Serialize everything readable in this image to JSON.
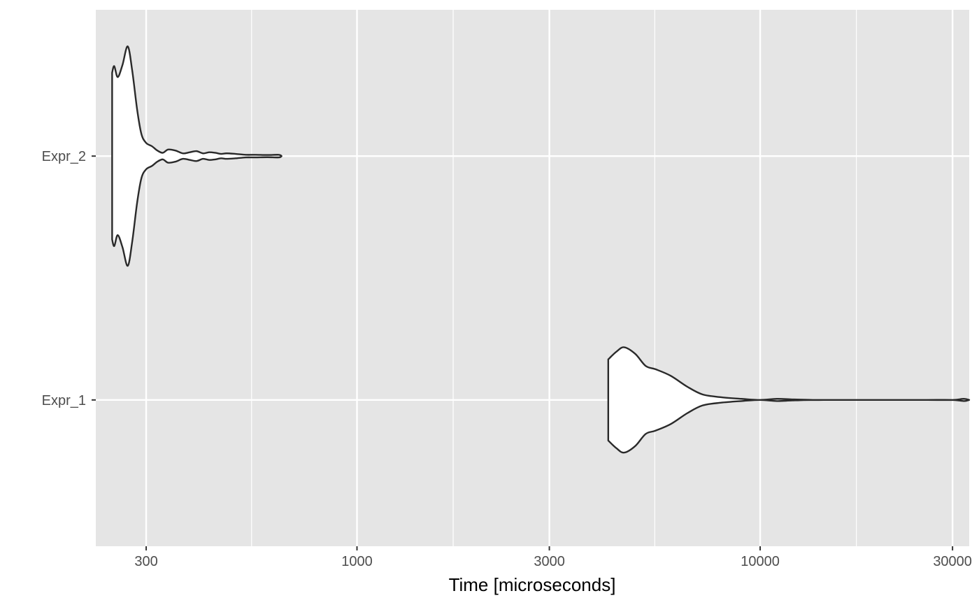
{
  "chart_data": {
    "type": "violin",
    "orientation": "horizontal",
    "title": "",
    "xlabel": "Time [microseconds]",
    "ylabel": "",
    "x_scale": "log10",
    "xlim": [
      225,
      33000
    ],
    "x_major_ticks": [
      300,
      1000,
      3000,
      10000,
      30000
    ],
    "x_tick_labels": [
      "300",
      "1000",
      "3000",
      "10000",
      "30000"
    ],
    "x_minor_ticks": [
      547.72,
      1732.05,
      5477.23,
      17320.51
    ],
    "categories": [
      "Expr_1",
      "Expr_2"
    ],
    "grid": true,
    "legend": "none",
    "colors": {
      "panel": "#e5e5e5",
      "grid": "#ffffff",
      "violin_fill": "#ffffff",
      "violin_stroke": "#2a2a2a",
      "tick_label": "#4d4d4d",
      "tick": "#333333"
    },
    "series": [
      {
        "category": "Expr_2",
        "x": [
          247,
          250,
          255,
          262,
          270,
          277,
          285,
          292,
          300,
          310,
          320,
          330,
          340,
          355,
          370,
          385,
          400,
          415,
          430,
          445,
          460,
          475,
          500,
          530,
          560,
          600,
          640,
          650
        ],
        "density": [
          0.76,
          0.82,
          0.72,
          0.83,
          1.0,
          0.78,
          0.42,
          0.2,
          0.12,
          0.09,
          0.05,
          0.03,
          0.06,
          0.05,
          0.025,
          0.035,
          0.045,
          0.025,
          0.035,
          0.03,
          0.02,
          0.025,
          0.02,
          0.012,
          0.012,
          0.01,
          0.012,
          0.0
        ]
      },
      {
        "category": "Expr_1",
        "x": [
          4200,
          4400,
          4600,
          4900,
          5200,
          5500,
          6000,
          6600,
          7200,
          8000,
          9000,
          10000,
          11000,
          12000,
          13500,
          15000,
          18000,
          22000,
          26000,
          30000,
          32000,
          33000
        ],
        "density": [
          0.37,
          0.44,
          0.48,
          0.42,
          0.31,
          0.28,
          0.22,
          0.12,
          0.05,
          0.025,
          0.01,
          0.0,
          0.01,
          0.005,
          0.0,
          0.0,
          0.0,
          0.0,
          0.0,
          0.0,
          0.01,
          0.0
        ]
      }
    ]
  }
}
